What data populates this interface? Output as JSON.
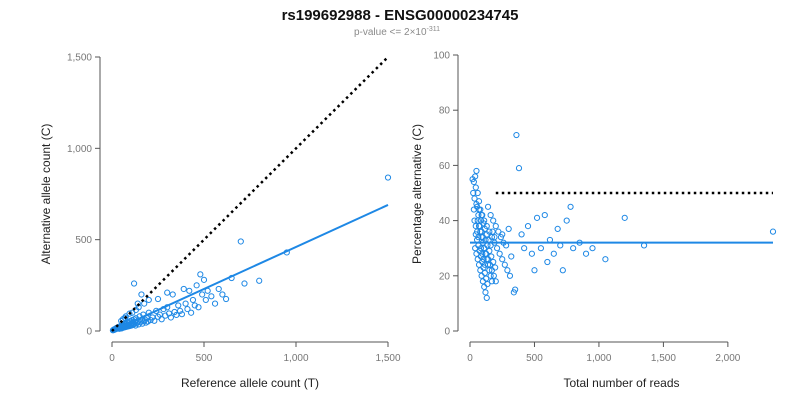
{
  "header": {
    "title": "rs199692988 - ENSG00000234745",
    "subtitle_prefix": "p-value <= 2×10",
    "subtitle_exponent": "-311"
  },
  "colors": {
    "points": "#1e88e5",
    "fit_line": "#1e88e5",
    "reference_line": "#000000"
  },
  "chart_data": [
    {
      "type": "scatter",
      "xlabel": "Reference allele count (T)",
      "ylabel": "Alternative allele count (C)",
      "xlim": [
        0,
        1500
      ],
      "ylim": [
        0,
        1500
      ],
      "xticks": [
        {
          "v": 0,
          "label": "0"
        },
        {
          "v": 500,
          "label": "500"
        },
        {
          "v": 1000,
          "label": "1,000"
        },
        {
          "v": 1500,
          "label": "1,500"
        }
      ],
      "yticks": [
        {
          "v": 0,
          "label": "0"
        },
        {
          "v": 500,
          "label": "500"
        },
        {
          "v": 1000,
          "label": "1,000"
        },
        {
          "v": 1500,
          "label": "1,500"
        }
      ],
      "grid": false,
      "reference_line": {
        "x": [
          0,
          1500
        ],
        "y": [
          0,
          1500
        ],
        "style": "dotted"
      },
      "fit_line": {
        "x": [
          0,
          1500
        ],
        "y": [
          0,
          690
        ]
      },
      "points": [
        [
          5,
          4
        ],
        [
          8,
          6
        ],
        [
          10,
          5
        ],
        [
          12,
          9
        ],
        [
          15,
          8
        ],
        [
          18,
          12
        ],
        [
          20,
          10
        ],
        [
          22,
          15
        ],
        [
          25,
          12
        ],
        [
          28,
          18
        ],
        [
          30,
          14
        ],
        [
          32,
          20
        ],
        [
          35,
          16
        ],
        [
          38,
          22
        ],
        [
          40,
          12
        ],
        [
          42,
          25
        ],
        [
          45,
          18
        ],
        [
          48,
          28
        ],
        [
          50,
          20
        ],
        [
          52,
          14
        ],
        [
          55,
          30
        ],
        [
          58,
          24
        ],
        [
          60,
          18
        ],
        [
          62,
          35
        ],
        [
          65,
          26
        ],
        [
          68,
          20
        ],
        [
          70,
          38
        ],
        [
          72,
          28
        ],
        [
          75,
          22
        ],
        [
          78,
          40
        ],
        [
          80,
          30
        ],
        [
          82,
          24
        ],
        [
          85,
          45
        ],
        [
          88,
          32
        ],
        [
          90,
          26
        ],
        [
          92,
          50
        ],
        [
          95,
          35
        ],
        [
          98,
          28
        ],
        [
          100,
          55
        ],
        [
          102,
          38
        ],
        [
          105,
          30
        ],
        [
          108,
          42
        ],
        [
          110,
          60
        ],
        [
          112,
          34
        ],
        [
          115,
          46
        ],
        [
          118,
          36
        ],
        [
          120,
          64
        ],
        [
          122,
          40
        ],
        [
          125,
          50
        ],
        [
          128,
          30
        ],
        [
          130,
          70
        ],
        [
          135,
          44
        ],
        [
          140,
          52
        ],
        [
          145,
          36
        ],
        [
          150,
          80
        ],
        [
          155,
          48
        ],
        [
          160,
          58
        ],
        [
          165,
          40
        ],
        [
          170,
          90
        ],
        [
          175,
          54
        ],
        [
          180,
          62
        ],
        [
          185,
          46
        ],
        [
          190,
          70
        ],
        [
          195,
          52
        ],
        [
          200,
          100
        ],
        [
          210,
          60
        ],
        [
          220,
          74
        ],
        [
          230,
          56
        ],
        [
          240,
          110
        ],
        [
          250,
          78
        ],
        [
          260,
          90
        ],
        [
          270,
          64
        ],
        [
          280,
          120
        ],
        [
          290,
          84
        ],
        [
          300,
          130
        ],
        [
          310,
          96
        ],
        [
          320,
          74
        ],
        [
          330,
          200
        ],
        [
          340,
          104
        ],
        [
          350,
          88
        ],
        [
          360,
          140
        ],
        [
          370,
          110
        ],
        [
          380,
          92
        ],
        [
          390,
          230
        ],
        [
          400,
          150
        ],
        [
          410,
          120
        ],
        [
          420,
          220
        ],
        [
          430,
          100
        ],
        [
          440,
          170
        ],
        [
          450,
          140
        ],
        [
          460,
          250
        ],
        [
          470,
          130
        ],
        [
          480,
          310
        ],
        [
          490,
          200
        ],
        [
          500,
          280
        ],
        [
          510,
          170
        ],
        [
          520,
          220
        ],
        [
          540,
          190
        ],
        [
          560,
          150
        ],
        [
          580,
          230
        ],
        [
          600,
          200
        ],
        [
          620,
          175
        ],
        [
          650,
          290
        ],
        [
          700,
          490
        ],
        [
          720,
          260
        ],
        [
          800,
          275
        ],
        [
          950,
          430
        ],
        [
          1500,
          840
        ],
        [
          120,
          260
        ],
        [
          160,
          200
        ],
        [
          200,
          170
        ],
        [
          250,
          175
        ],
        [
          300,
          210
        ],
        [
          75,
          80
        ],
        [
          95,
          95
        ],
        [
          130,
          115
        ],
        [
          145,
          130
        ],
        [
          175,
          150
        ],
        [
          50,
          55
        ],
        [
          60,
          65
        ],
        [
          70,
          72
        ],
        [
          110,
          100
        ],
        [
          140,
          150
        ]
      ]
    },
    {
      "type": "scatter",
      "xlabel": "Total number of reads",
      "ylabel": "Percentage alternative (C)",
      "xlim": [
        0,
        2350
      ],
      "ylim": [
        0,
        100
      ],
      "xticks": [
        {
          "v": 0,
          "label": "0"
        },
        {
          "v": 500,
          "label": "500"
        },
        {
          "v": 1000,
          "label": "1,000"
        },
        {
          "v": 1500,
          "label": "1,500"
        },
        {
          "v": 2000,
          "label": "2,000"
        }
      ],
      "yticks": [
        {
          "v": 0,
          "label": "0"
        },
        {
          "v": 20,
          "label": "20"
        },
        {
          "v": 40,
          "label": "40"
        },
        {
          "v": 60,
          "label": "60"
        },
        {
          "v": 80,
          "label": "80"
        },
        {
          "v": 100,
          "label": "100"
        }
      ],
      "grid": false,
      "reference_line": {
        "x": [
          0,
          2350
        ],
        "y": [
          50,
          50
        ],
        "style": "dotted"
      },
      "fit_line": {
        "x": [
          0,
          2350
        ],
        "y": [
          32,
          32
        ]
      },
      "points": [
        [
          20,
          55
        ],
        [
          25,
          50
        ],
        [
          30,
          54
        ],
        [
          35,
          48
        ],
        [
          40,
          56
        ],
        [
          45,
          52
        ],
        [
          50,
          58
        ],
        [
          55,
          45
        ],
        [
          60,
          50
        ],
        [
          65,
          42
        ],
        [
          70,
          47
        ],
        [
          75,
          38
        ],
        [
          80,
          44
        ],
        [
          85,
          40
        ],
        [
          90,
          36
        ],
        [
          95,
          42
        ],
        [
          100,
          34
        ],
        [
          105,
          39
        ],
        [
          110,
          30
        ],
        [
          115,
          37
        ],
        [
          120,
          33
        ],
        [
          125,
          28
        ],
        [
          130,
          35
        ],
        [
          135,
          31
        ],
        [
          140,
          26
        ],
        [
          145,
          33
        ],
        [
          150,
          29
        ],
        [
          155,
          24
        ],
        [
          160,
          31
        ],
        [
          165,
          27
        ],
        [
          170,
          22
        ],
        [
          175,
          36
        ],
        [
          180,
          25
        ],
        [
          185,
          20
        ],
        [
          190,
          34
        ],
        [
          195,
          23
        ],
        [
          200,
          18
        ],
        [
          40,
          30
        ],
        [
          50,
          28
        ],
        [
          60,
          26
        ],
        [
          70,
          24
        ],
        [
          80,
          22
        ],
        [
          90,
          20
        ],
        [
          100,
          18
        ],
        [
          110,
          16
        ],
        [
          120,
          14
        ],
        [
          130,
          12
        ],
        [
          45,
          35
        ],
        [
          55,
          33
        ],
        [
          65,
          31
        ],
        [
          75,
          29
        ],
        [
          85,
          27
        ],
        [
          95,
          25
        ],
        [
          105,
          23
        ],
        [
          115,
          21
        ],
        [
          125,
          19
        ],
        [
          135,
          17
        ],
        [
          60,
          40
        ],
        [
          70,
          38
        ],
        [
          80,
          36
        ],
        [
          90,
          34
        ],
        [
          100,
          32
        ],
        [
          110,
          30
        ],
        [
          120,
          28
        ],
        [
          130,
          26
        ],
        [
          140,
          24
        ],
        [
          150,
          22
        ],
        [
          160,
          20
        ],
        [
          170,
          18
        ],
        [
          50,
          46
        ],
        [
          70,
          44
        ],
        [
          90,
          42
        ],
        [
          110,
          40
        ],
        [
          130,
          38
        ],
        [
          150,
          36
        ],
        [
          170,
          34
        ],
        [
          190,
          32
        ],
        [
          210,
          30
        ],
        [
          230,
          28
        ],
        [
          250,
          26
        ],
        [
          270,
          24
        ],
        [
          290,
          22
        ],
        [
          310,
          20
        ],
        [
          250,
          35
        ],
        [
          280,
          31
        ],
        [
          300,
          37
        ],
        [
          320,
          27
        ],
        [
          340,
          14
        ],
        [
          350,
          15
        ],
        [
          360,
          71
        ],
        [
          380,
          59
        ],
        [
          400,
          35
        ],
        [
          420,
          30
        ],
        [
          450,
          38
        ],
        [
          480,
          28
        ],
        [
          500,
          22
        ],
        [
          520,
          41
        ],
        [
          550,
          30
        ],
        [
          580,
          42
        ],
        [
          600,
          25
        ],
        [
          620,
          33
        ],
        [
          650,
          28
        ],
        [
          680,
          37
        ],
        [
          700,
          31
        ],
        [
          720,
          22
        ],
        [
          750,
          40
        ],
        [
          780,
          45
        ],
        [
          800,
          30
        ],
        [
          850,
          32
        ],
        [
          900,
          28
        ],
        [
          950,
          30
        ],
        [
          1050,
          26
        ],
        [
          1200,
          41
        ],
        [
          1350,
          31
        ],
        [
          2350,
          36
        ],
        [
          140,
          45
        ],
        [
          160,
          42
        ],
        [
          180,
          40
        ],
        [
          200,
          38
        ],
        [
          220,
          36
        ],
        [
          240,
          34
        ],
        [
          260,
          32
        ],
        [
          30,
          44
        ],
        [
          35,
          40
        ],
        [
          45,
          38
        ],
        [
          55,
          36
        ],
        [
          65,
          34
        ],
        [
          85,
          30
        ],
        [
          95,
          28
        ],
        [
          105,
          26
        ],
        [
          115,
          24
        ]
      ]
    }
  ]
}
